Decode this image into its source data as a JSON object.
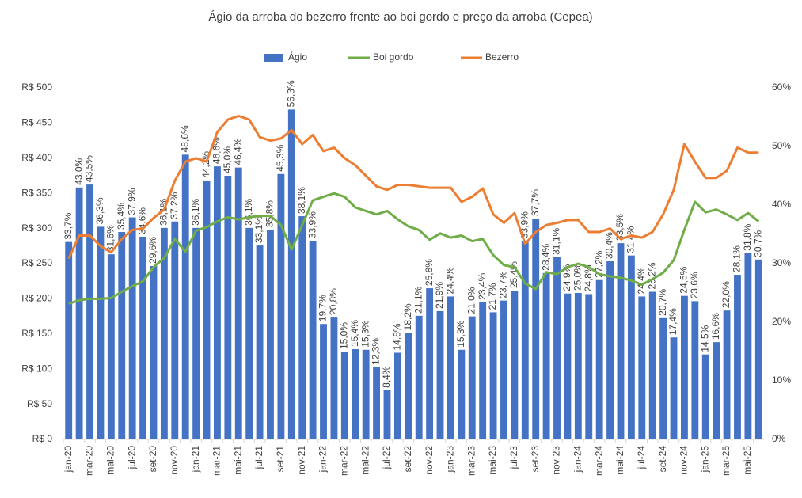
{
  "chart_data": {
    "type": "combo",
    "title": "Ágio da arroba do bezerro frente ao boi gordo e preço da arroba (Cepea)",
    "categories": [
      "jan-20",
      null,
      "mar-20",
      null,
      "mai-20",
      null,
      "jul-20",
      null,
      "set-20",
      null,
      "nov-20",
      null,
      "jan-21",
      null,
      "mar-21",
      null,
      "mai-21",
      null,
      "jul-21",
      null,
      "set-21",
      null,
      "nov-21",
      null,
      "jan-22",
      null,
      "mar-22",
      null,
      "mai-22",
      null,
      "jul-22",
      null,
      "set-22",
      null,
      "nov-22",
      null,
      "jan-23",
      null,
      "mar-23",
      null,
      "mai-23",
      null,
      "jul-23",
      null,
      "set-23",
      null,
      "nov-23",
      null,
      "jan-24",
      null,
      "mar-24",
      null,
      "mai-24",
      null,
      "jul-24",
      null,
      "set-24",
      null,
      "nov-24",
      null,
      "jan-25",
      null,
      "mar-25",
      null,
      "mai-25",
      null
    ],
    "series": [
      {
        "name": "Ágio",
        "type": "bar",
        "axis": "y2",
        "color": "#4472c4",
        "values": [
          33.7,
          43.0,
          43.5,
          36.3,
          31.6,
          35.4,
          37.9,
          34.6,
          29.6,
          36.1,
          37.2,
          48.6,
          36.1,
          44.2,
          46.6,
          45.0,
          46.4,
          36.1,
          33.1,
          35.8,
          45.3,
          56.3,
          38.1,
          33.9,
          19.7,
          20.8,
          15.0,
          15.4,
          15.3,
          12.3,
          8.4,
          14.8,
          18.2,
          21.1,
          25.8,
          21.9,
          24.4,
          15.3,
          21.0,
          23.4,
          21.7,
          23.7,
          25.4,
          33.9,
          37.7,
          28.4,
          31.1,
          24.9,
          25.0,
          24.8,
          27.2,
          30.4,
          33.5,
          31.4,
          24.4,
          25.2,
          20.7,
          17.4,
          24.5,
          23.6,
          14.5,
          16.6,
          22.0,
          28.1,
          31.8,
          30.7
        ],
        "value_labels": [
          "33,7%",
          "43,0%",
          "43,5%",
          "36,3%",
          "31,6%",
          "35,4%",
          "37,9%",
          "34,6%",
          "29,6%",
          "36,1%",
          "37,2%",
          "48,6%",
          "36,1%",
          "44,2%",
          "46,6%",
          "45,0%",
          "46,4%",
          "36,1%",
          "33,1%",
          "35,8%",
          "45,3%",
          "56,3%",
          "38,1%",
          "33,9%",
          "19,7%",
          "20,8%",
          "15,0%",
          "15,4%",
          "15,3%",
          "12,3%",
          "8,4%",
          "14,8%",
          "18,2%",
          "21,1%",
          "25,8%",
          "21,9%",
          "24,4%",
          "15,3%",
          "21,0%",
          "23,4%",
          "21,7%",
          "23,7%",
          "25,4%",
          "33,9%",
          "37,7%",
          "28,4%",
          "31,1%",
          "24,9%",
          "25,0%",
          "24,8%",
          "27,2%",
          "30,4%",
          "33,5%",
          "31,4%",
          "24,4%",
          "25,2%",
          "20,7%",
          "17,4%",
          "24,5%",
          "23,6%",
          "14,5%",
          "16,6%",
          "22,0%",
          "28,1%",
          "31,8%",
          "30,7%"
        ]
      },
      {
        "name": "Boi gordo",
        "type": "line",
        "color": "#70ad47",
        "values": [
          193,
          198,
          200,
          200,
          201,
          210,
          218,
          225,
          245,
          258,
          285,
          267,
          297,
          302,
          310,
          316,
          313,
          316,
          318,
          318,
          305,
          270,
          305,
          340,
          345,
          350,
          345,
          330,
          325,
          320,
          325,
          313,
          303,
          298,
          284,
          293,
          287,
          290,
          282,
          285,
          262,
          248,
          245,
          222,
          214,
          238,
          235,
          245,
          250,
          245,
          235,
          232,
          230,
          226,
          220,
          228,
          237,
          255,
          298,
          338,
          323,
          327,
          320,
          312,
          322,
          310
        ]
      },
      {
        "name": "Bezerro",
        "type": "line",
        "color": "#ed7d31",
        "values": [
          257,
          290,
          290,
          275,
          266,
          285,
          298,
          300,
          315,
          327,
          368,
          395,
          400,
          395,
          437,
          455,
          460,
          455,
          430,
          425,
          428,
          440,
          420,
          433,
          410,
          415,
          400,
          390,
          375,
          360,
          355,
          362,
          362,
          360,
          358,
          358,
          358,
          338,
          345,
          357,
          320,
          308,
          322,
          278,
          295,
          305,
          308,
          312,
          312,
          295,
          295,
          300,
          285,
          290,
          287,
          295,
          320,
          355,
          420,
          395,
          372,
          372,
          382,
          415,
          408,
          408
        ]
      }
    ],
    "ylim": [
      0,
      500
    ],
    "yticks": [
      {
        "value": 0,
        "label": "R$ 0"
      },
      {
        "value": 50,
        "label": "R$ 50"
      },
      {
        "value": 100,
        "label": "R$ 100"
      },
      {
        "value": 150,
        "label": "R$ 150"
      },
      {
        "value": 200,
        "label": "R$ 200"
      },
      {
        "value": 250,
        "label": "R$ 250"
      },
      {
        "value": 300,
        "label": "R$ 300"
      },
      {
        "value": 350,
        "label": "R$ 350"
      },
      {
        "value": 400,
        "label": "R$ 400"
      },
      {
        "value": 450,
        "label": "R$ 450"
      },
      {
        "value": 500,
        "label": "R$ 500"
      }
    ],
    "y2lim": [
      0,
      60
    ],
    "y2ticks": [
      {
        "value": 0,
        "label": "0%"
      },
      {
        "value": 10,
        "label": "10%"
      },
      {
        "value": 20,
        "label": "20%"
      },
      {
        "value": 30,
        "label": "30%"
      },
      {
        "value": 40,
        "label": "40%"
      },
      {
        "value": 50,
        "label": "50%"
      },
      {
        "value": 60,
        "label": "60%"
      }
    ],
    "grid": false,
    "legend": "top"
  }
}
